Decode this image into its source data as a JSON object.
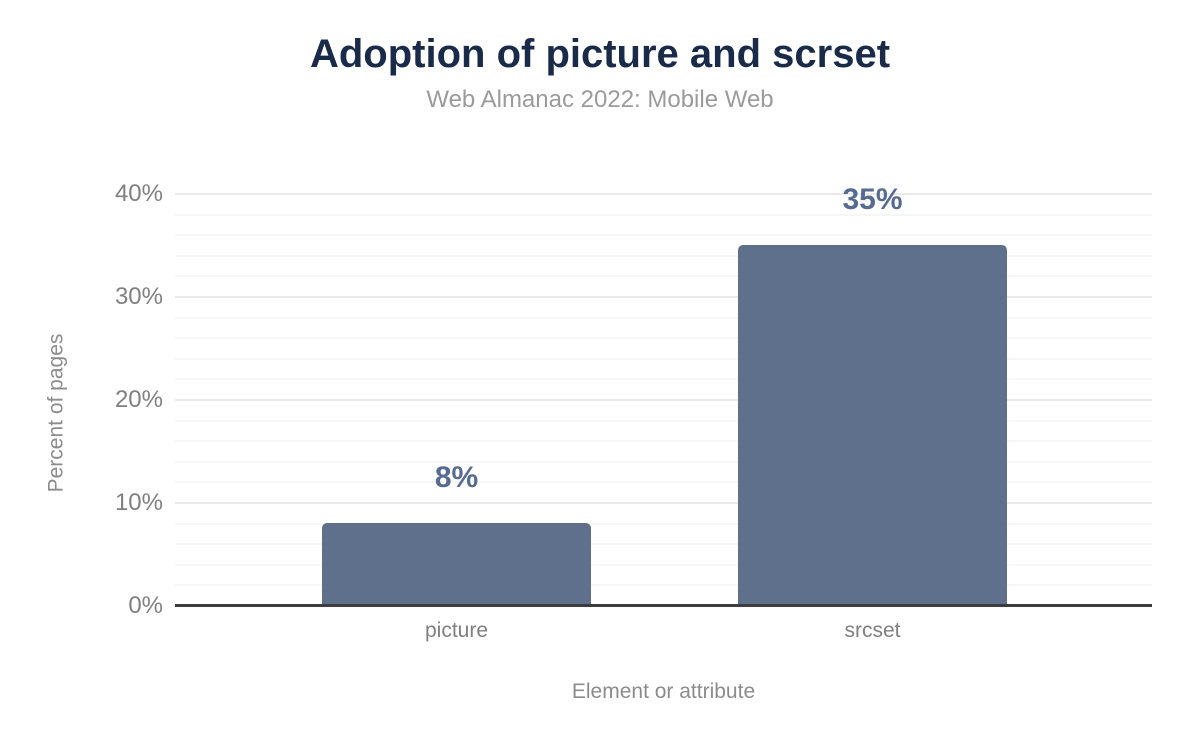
{
  "chart_data": {
    "type": "bar",
    "title": "Adoption of picture and scrset",
    "subtitle": "Web Almanac 2022: Mobile Web",
    "categories": [
      "picture",
      "srcset"
    ],
    "values": [
      8,
      35
    ],
    "value_labels": [
      "8%",
      "35%"
    ],
    "xlabel": "Element or attribute",
    "ylabel": "Percent of pages",
    "ylim": [
      0,
      40
    ],
    "ytick_labels": [
      "0%",
      "10%",
      "20%",
      "30%",
      "40%"
    ],
    "ytick_values": [
      0,
      10,
      20,
      30,
      40
    ],
    "grid": {
      "major_step": 10,
      "minor_step": 2,
      "visible": true
    },
    "legend": "none",
    "colors": {
      "background": "#ffffff",
      "bar": "#5f708c",
      "value_label": "#566b90",
      "title": "#1a2b49",
      "subtitle": "#9b9b9b",
      "tick_label": "#808080",
      "axis_title": "#8c8c8c",
      "grid_major": "#ebebeb",
      "grid_minor": "#f6f6f6",
      "axis_line": "#3d3d3d"
    }
  }
}
